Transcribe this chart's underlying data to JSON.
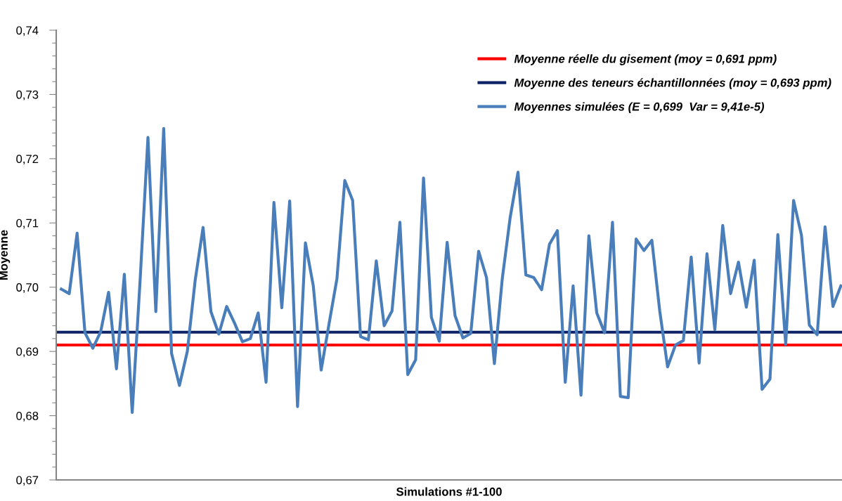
{
  "chart_data": {
    "type": "line",
    "xlabel": "Simulations #1-100",
    "ylabel": "Moyenne",
    "categories": [
      null,
      null,
      null,
      null,
      null,
      null,
      null,
      null,
      null,
      null,
      null,
      null,
      null,
      null,
      null,
      null,
      null,
      null,
      null,
      null,
      null,
      null,
      null,
      null,
      null,
      null,
      null,
      null,
      null,
      null,
      null,
      null,
      null,
      null,
      null,
      null,
      null,
      null,
      null,
      null,
      null,
      null,
      null,
      null,
      null,
      null,
      null,
      null,
      null,
      null,
      null,
      null,
      null,
      null,
      null,
      null,
      null,
      null,
      null,
      null,
      null,
      null,
      null,
      null,
      null,
      null,
      null,
      null,
      null,
      null,
      null,
      null,
      null,
      null,
      null,
      null,
      null,
      null,
      null,
      null,
      null,
      null,
      null,
      null,
      null,
      null,
      null,
      null,
      null,
      null,
      null,
      null,
      null,
      null,
      null,
      null,
      null,
      null,
      null,
      null
    ],
    "series": [
      {
        "name": "Moyennes simulées (E = 0,699  Var = 9,41e-5)",
        "color": "#4a7ebb",
        "values": [
          0.6997,
          0.699,
          0.7084,
          0.6929,
          0.6905,
          0.6931,
          0.6992,
          0.6873,
          0.702,
          0.6805,
          0.701,
          0.7233,
          0.6962,
          0.7247,
          0.6897,
          0.6847,
          0.69,
          0.7011,
          0.7093,
          0.6962,
          0.6927,
          0.697,
          0.6944,
          0.6915,
          0.692,
          0.696,
          0.6852,
          0.7132,
          0.6968,
          0.7134,
          0.6814,
          0.7069,
          0.7002,
          0.6871,
          0.6943,
          0.7013,
          0.7166,
          0.7135,
          0.6923,
          0.6918,
          0.7041,
          0.694,
          0.6963,
          0.7101,
          0.6864,
          0.6887,
          0.717,
          0.6953,
          0.6916,
          0.707,
          0.6956,
          0.6921,
          0.6928,
          0.7056,
          0.7015,
          0.6881,
          0.7013,
          0.7108,
          0.7179,
          0.7019,
          0.7015,
          0.6996,
          0.7067,
          0.7088,
          0.6852,
          0.7002,
          0.6832,
          0.708,
          0.696,
          0.6929,
          0.7101,
          0.683,
          0.6828,
          0.7075,
          0.7057,
          0.7073,
          0.6963,
          0.6876,
          0.691,
          0.6917,
          0.7047,
          0.6882,
          0.7052,
          0.6934,
          0.7096,
          0.699,
          0.7039,
          0.6969,
          0.7042,
          0.6841,
          0.6857,
          0.7082,
          0.6911,
          0.7135,
          0.7081,
          0.6941,
          0.6926,
          0.7094,
          0.697,
          0.7002
        ]
      }
    ],
    "ref_lines": [
      {
        "axis": "y",
        "value": 0.691,
        "label": "Moyenne réelle du gisement (moy = 0,691 ppm)",
        "color": "#ff0000"
      },
      {
        "axis": "y",
        "value": 0.693,
        "label": "Moyenne des teneurs échantillonnées (moy = 0,693 ppm)",
        "color": "#0e2366"
      }
    ],
    "ylim": [
      0.67,
      0.74
    ],
    "yticks": [
      {
        "value": 0.67,
        "label": "0,67"
      },
      {
        "value": 0.672,
        "label": null
      },
      {
        "value": 0.674,
        "label": null
      },
      {
        "value": 0.676,
        "label": null
      },
      {
        "value": 0.678,
        "label": null
      },
      {
        "value": 0.68,
        "label": "0,68"
      },
      {
        "value": 0.682,
        "label": null
      },
      {
        "value": 0.684,
        "label": null
      },
      {
        "value": 0.686,
        "label": null
      },
      {
        "value": 0.688,
        "label": null
      },
      {
        "value": 0.69,
        "label": "0,69"
      },
      {
        "value": 0.692,
        "label": null
      },
      {
        "value": 0.694,
        "label": null
      },
      {
        "value": 0.696,
        "label": null
      },
      {
        "value": 0.698,
        "label": null
      },
      {
        "value": 0.7,
        "label": "0,70"
      },
      {
        "value": 0.702,
        "label": null
      },
      {
        "value": 0.704,
        "label": null
      },
      {
        "value": 0.706,
        "label": null
      },
      {
        "value": 0.708,
        "label": null
      },
      {
        "value": 0.71,
        "label": "0,71"
      },
      {
        "value": 0.712,
        "label": null
      },
      {
        "value": 0.714,
        "label": null
      },
      {
        "value": 0.716,
        "label": null
      },
      {
        "value": 0.718,
        "label": null
      },
      {
        "value": 0.72,
        "label": "0,72"
      },
      {
        "value": 0.722,
        "label": null
      },
      {
        "value": 0.724,
        "label": null
      },
      {
        "value": 0.726,
        "label": null
      },
      {
        "value": 0.728,
        "label": null
      },
      {
        "value": 0.73,
        "label": "0,73"
      },
      {
        "value": 0.732,
        "label": null
      },
      {
        "value": 0.734,
        "label": null
      },
      {
        "value": 0.736,
        "label": null
      },
      {
        "value": 0.738,
        "label": null
      },
      {
        "value": 0.74,
        "label": "0,74"
      }
    ],
    "grid": false,
    "legend": "top right",
    "marker": "none",
    "line_style": "solid"
  }
}
